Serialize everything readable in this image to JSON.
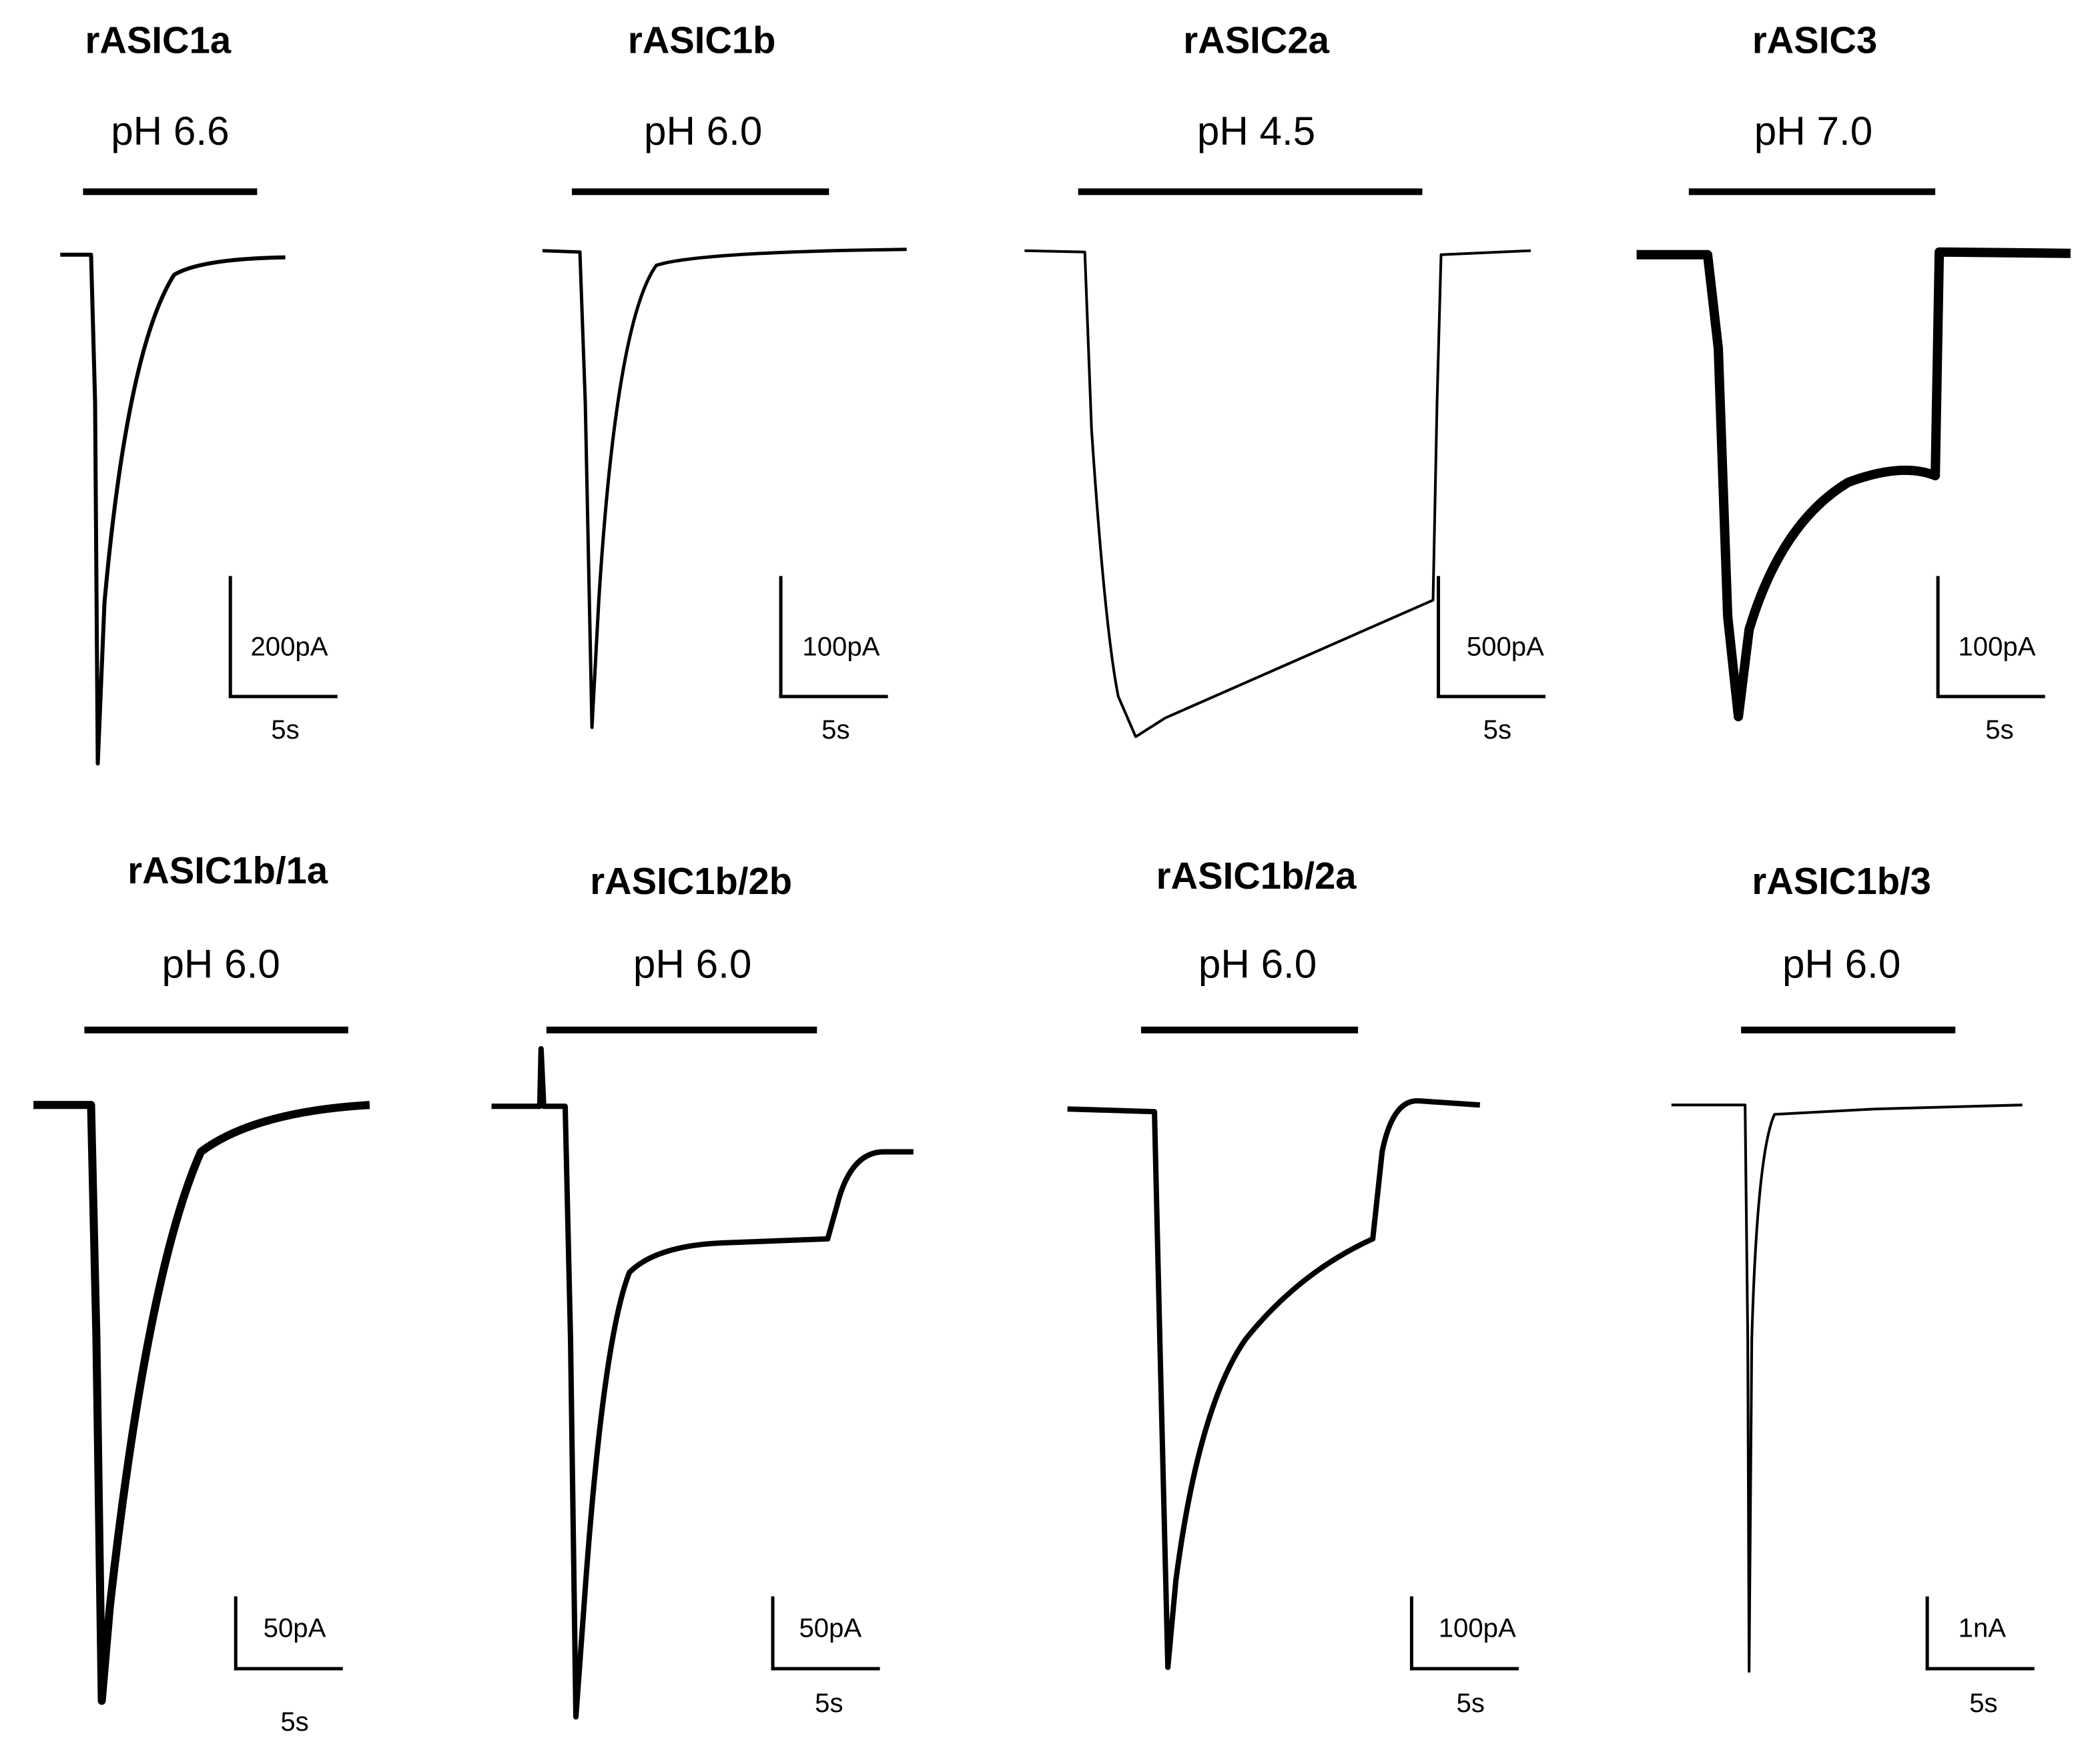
{
  "panels": [
    {
      "title": "rASIC1a",
      "condition": "pH 6.6",
      "current_scale": "200pA",
      "time_scale": "5s"
    },
    {
      "title": "rASIC1b",
      "condition": "pH 6.0",
      "current_scale": "100pA",
      "time_scale": "5s"
    },
    {
      "title": "rASIC2a",
      "condition": "pH 4.5",
      "current_scale": "500pA",
      "time_scale": "5s"
    },
    {
      "title": "rASIC3",
      "condition": "pH 7.0",
      "current_scale": "100pA",
      "time_scale": "5s"
    },
    {
      "title": "rASIC1b/1a",
      "condition": "pH 6.0",
      "current_scale": "50pA",
      "time_scale": "5s"
    },
    {
      "title": "rASIC1b/2b",
      "condition": "pH 6.0",
      "current_scale": "50pA",
      "time_scale": "5s"
    },
    {
      "title": "rASIC1b/2a",
      "condition": "pH 6.0",
      "current_scale": "100pA",
      "time_scale": "5s"
    },
    {
      "title": "rASIC1b/3",
      "condition": "pH 6.0",
      "current_scale": "1nA",
      "time_scale": "5s"
    }
  ]
}
